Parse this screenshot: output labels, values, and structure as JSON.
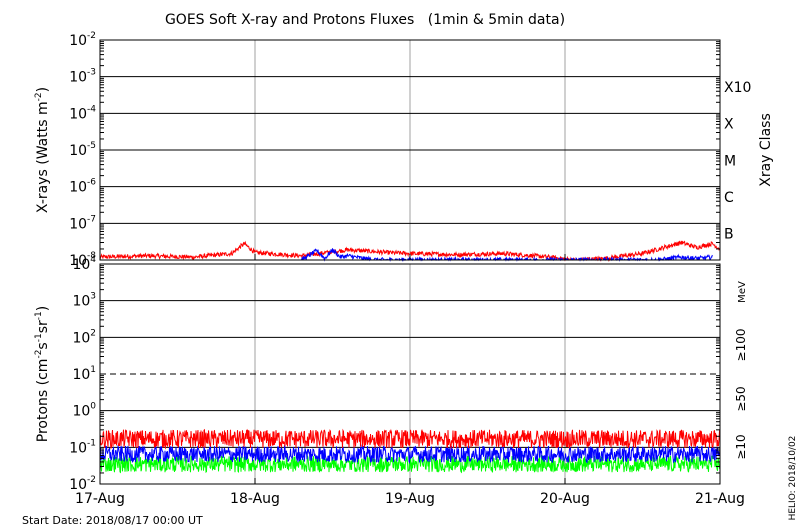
{
  "chart_data": [
    {
      "type": "line",
      "title": "GOES Soft X-ray and Protons Fluxes   (1min & 5min data)",
      "ylabel_main": "X-rays (Watts m",
      "ylabel_exp": "-2",
      "ylabel_close": ")",
      "yscale": "log",
      "ylim_exp": [
        -8,
        -2
      ],
      "y_tick_exponents": [
        -8,
        -7,
        -6,
        -5,
        -4,
        -3,
        -2
      ],
      "y_tick_base": "10",
      "xray_class_title": "Xray Class",
      "xray_classes": [
        {
          "label": "B",
          "exp": -7
        },
        {
          "label": "C",
          "exp": -6
        },
        {
          "label": "M",
          "exp": -5
        },
        {
          "label": "X",
          "exp": -4
        },
        {
          "label": "X10",
          "exp": -3
        }
      ],
      "series": [
        {
          "color": "#ff0000",
          "x": [
            0,
            0.3,
            0.6,
            0.85,
            0.93,
            1.0,
            1.3,
            1.6,
            1.85,
            2.0,
            2.3,
            2.6,
            2.8,
            2.9,
            3.05,
            3.25,
            3.5,
            3.75,
            3.85,
            3.95,
            4.0
          ],
          "y": [
            1.2e-08,
            1.3e-08,
            1.2e-08,
            1.5e-08,
            2.8e-08,
            1.6e-08,
            1.3e-08,
            1.9e-08,
            1.6e-08,
            1.5e-08,
            1.4e-08,
            1.5e-08,
            1.3e-08,
            1.2e-08,
            1e-08,
            1.1e-08,
            1.5e-08,
            3e-08,
            2.2e-08,
            2.8e-08,
            2e-08
          ]
        },
        {
          "color": "#0000ff",
          "x": [
            1.3,
            1.4,
            1.45,
            1.5,
            1.55,
            1.6,
            1.7,
            1.8,
            2.0,
            2.3,
            2.6,
            3.6,
            3.75,
            3.85,
            3.95
          ],
          "y": [
            1e-08,
            1.8e-08,
            1.1e-08,
            1.9e-08,
            1.2e-08,
            1.3e-08,
            1.1e-08,
            1e-08,
            1e-08,
            1e-08,
            1e-08,
            1e-08,
            1.2e-08,
            1.1e-08,
            1.2e-08
          ]
        }
      ]
    },
    {
      "type": "line",
      "ylabel_main": "Protons (cm",
      "ylabel_exp1": "-2",
      "ylabel_mid": "s",
      "ylabel_exp2": "-1",
      "ylabel_mid2": "sr",
      "ylabel_exp3": "-1",
      "ylabel_close": ")",
      "yscale": "log",
      "ylim_exp": [
        -2,
        4
      ],
      "y_tick_exponents": [
        -2,
        -1,
        0,
        1,
        2,
        3,
        4
      ],
      "y_tick_base": "10",
      "dashed_threshold_exp": 1,
      "energy_unit": "MeV",
      "series": [
        {
          "name": "≥10",
          "color": "#ff0000",
          "level": 0.17,
          "jitter": 0.5
        },
        {
          "name": "≥50",
          "color": "#0000ff",
          "level": 0.065,
          "jitter": 0.45
        },
        {
          "name": "≥100",
          "color": "#00ff00",
          "level": 0.035,
          "jitter": 0.45
        }
      ]
    }
  ],
  "x_axis": {
    "categories": [
      "17-Aug",
      "18-Aug",
      "19-Aug",
      "20-Aug",
      "21-Aug"
    ],
    "xlim": [
      0,
      4
    ]
  },
  "footer": {
    "start_date": "Start Date: 2018/08/17 00:00 UT",
    "credit": "HELIO: 2018/10/02"
  }
}
